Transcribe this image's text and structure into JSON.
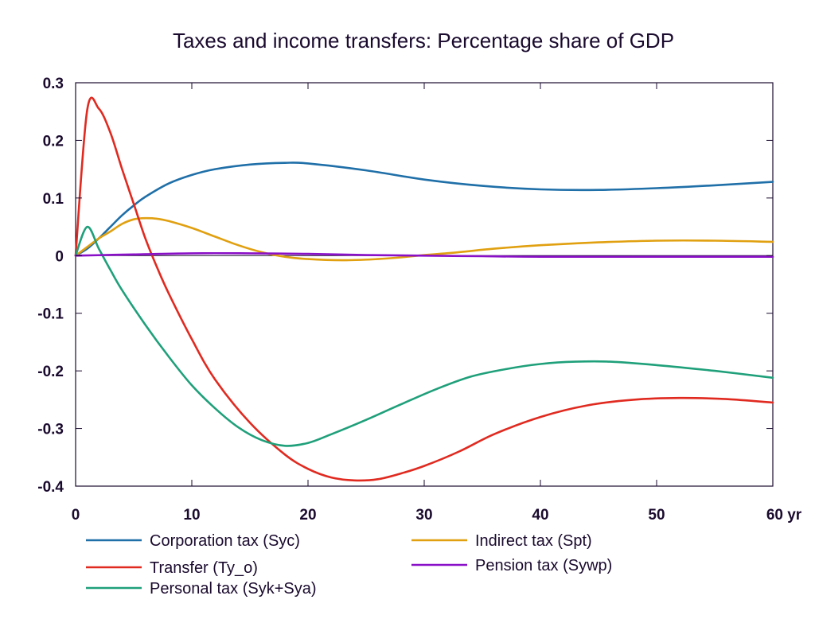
{
  "chart_data": {
    "type": "line",
    "title": "Taxes and income transfers: Percentage share of GDP",
    "xlabel": "",
    "ylabel": "",
    "xlim": [
      0,
      60
    ],
    "ylim": [
      -0.4,
      0.3
    ],
    "x_ticks": [
      {
        "value": 0,
        "label": "0"
      },
      {
        "value": 10,
        "label": "10"
      },
      {
        "value": 20,
        "label": "20"
      },
      {
        "value": 30,
        "label": "30"
      },
      {
        "value": 40,
        "label": "40"
      },
      {
        "value": 50,
        "label": "50"
      },
      {
        "value": 60,
        "label": "60 yr"
      }
    ],
    "y_ticks": [
      {
        "value": 0.3,
        "label": "0.3"
      },
      {
        "value": 0.2,
        "label": "0.2"
      },
      {
        "value": 0.1,
        "label": "0.1"
      },
      {
        "value": 0,
        "label": "0"
      },
      {
        "value": -0.1,
        "label": "-0.1"
      },
      {
        "value": -0.2,
        "label": "-0.2"
      },
      {
        "value": -0.3,
        "label": "-0.3"
      },
      {
        "value": -0.4,
        "label": "-0.4"
      }
    ],
    "grid": false,
    "legend_position": "bottom",
    "series": [
      {
        "name": "Corporation tax (Syc)",
        "color": "#1f6fa8",
        "points": [
          [
            0,
            0
          ],
          [
            1,
            0.012
          ],
          [
            2,
            0.03
          ],
          [
            3,
            0.05
          ],
          [
            4,
            0.07
          ],
          [
            5,
            0.087
          ],
          [
            6,
            0.102
          ],
          [
            8,
            0.125
          ],
          [
            10,
            0.14
          ],
          [
            12,
            0.15
          ],
          [
            15,
            0.158
          ],
          [
            18,
            0.161
          ],
          [
            20,
            0.16
          ],
          [
            25,
            0.148
          ],
          [
            30,
            0.132
          ],
          [
            35,
            0.121
          ],
          [
            40,
            0.115
          ],
          [
            45,
            0.114
          ],
          [
            50,
            0.117
          ],
          [
            55,
            0.122
          ],
          [
            60,
            0.128
          ]
        ]
      },
      {
        "name": "Indirect tax (Spt)",
        "color": "#e0a010",
        "points": [
          [
            0,
            0
          ],
          [
            1,
            0.015
          ],
          [
            2,
            0.03
          ],
          [
            3,
            0.042
          ],
          [
            4,
            0.055
          ],
          [
            5,
            0.063
          ],
          [
            6,
            0.065
          ],
          [
            7,
            0.064
          ],
          [
            8,
            0.06
          ],
          [
            10,
            0.048
          ],
          [
            12,
            0.033
          ],
          [
            14,
            0.018
          ],
          [
            16,
            0.006
          ],
          [
            18,
            -0.002
          ],
          [
            20,
            -0.006
          ],
          [
            23,
            -0.008
          ],
          [
            26,
            -0.006
          ],
          [
            28,
            -0.003
          ],
          [
            30,
            0.001
          ],
          [
            33,
            0.006
          ],
          [
            36,
            0.012
          ],
          [
            40,
            0.018
          ],
          [
            45,
            0.023
          ],
          [
            50,
            0.026
          ],
          [
            55,
            0.026
          ],
          [
            60,
            0.024
          ]
        ]
      },
      {
        "name": "Transfer (Ty_o)",
        "color": "#e02a20",
        "points": [
          [
            0,
            0
          ],
          [
            1,
            0.253
          ],
          [
            2,
            0.255
          ],
          [
            3,
            0.213
          ],
          [
            4,
            0.15
          ],
          [
            5,
            0.09
          ],
          [
            6,
            0.03
          ],
          [
            7,
            -0.02
          ],
          [
            8,
            -0.065
          ],
          [
            10,
            -0.145
          ],
          [
            12,
            -0.215
          ],
          [
            15,
            -0.29
          ],
          [
            18,
            -0.345
          ],
          [
            20,
            -0.37
          ],
          [
            22,
            -0.385
          ],
          [
            24,
            -0.39
          ],
          [
            26,
            -0.388
          ],
          [
            28,
            -0.378
          ],
          [
            30,
            -0.365
          ],
          [
            33,
            -0.34
          ],
          [
            36,
            -0.31
          ],
          [
            40,
            -0.28
          ],
          [
            44,
            -0.26
          ],
          [
            48,
            -0.25
          ],
          [
            52,
            -0.247
          ],
          [
            56,
            -0.249
          ],
          [
            60,
            -0.255
          ]
        ]
      },
      {
        "name": "Personal tax (Syk+Sya)",
        "color": "#1fa07a",
        "points": [
          [
            0,
            0
          ],
          [
            1,
            0.05
          ],
          [
            2,
            0.012
          ],
          [
            3,
            -0.025
          ],
          [
            4,
            -0.06
          ],
          [
            6,
            -0.12
          ],
          [
            8,
            -0.175
          ],
          [
            10,
            -0.225
          ],
          [
            12,
            -0.265
          ],
          [
            14,
            -0.298
          ],
          [
            16,
            -0.32
          ],
          [
            18,
            -0.33
          ],
          [
            20,
            -0.325
          ],
          [
            22,
            -0.31
          ],
          [
            25,
            -0.285
          ],
          [
            28,
            -0.258
          ],
          [
            31,
            -0.232
          ],
          [
            34,
            -0.21
          ],
          [
            37,
            -0.197
          ],
          [
            40,
            -0.188
          ],
          [
            43,
            -0.184
          ],
          [
            46,
            -0.184
          ],
          [
            50,
            -0.19
          ],
          [
            55,
            -0.2
          ],
          [
            60,
            -0.212
          ]
        ]
      },
      {
        "name": "Pension tax (Sywp)",
        "color": "#8a10c8",
        "points": [
          [
            0,
            0
          ],
          [
            5,
            0.002
          ],
          [
            10,
            0.004
          ],
          [
            15,
            0.004
          ],
          [
            20,
            0.003
          ],
          [
            25,
            0.001
          ],
          [
            30,
            0
          ],
          [
            35,
            -0.001
          ],
          [
            40,
            -0.002
          ],
          [
            50,
            -0.002
          ],
          [
            60,
            -0.002
          ]
        ]
      }
    ]
  }
}
